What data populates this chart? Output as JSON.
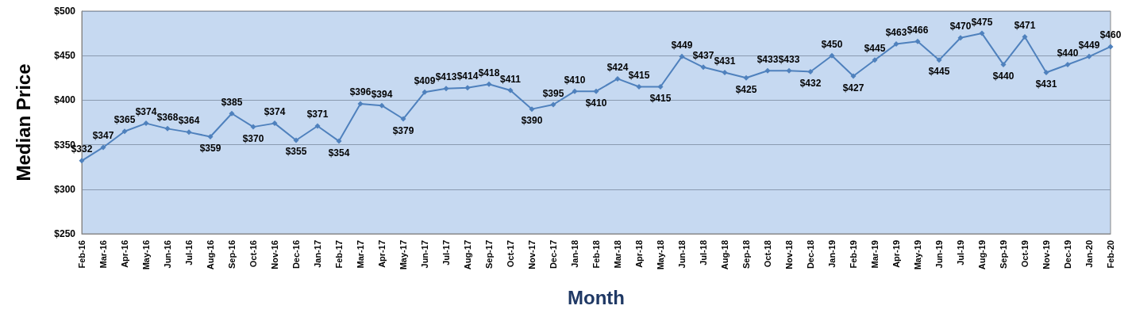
{
  "chart_data": {
    "type": "line",
    "xlabel": "Month",
    "ylabel": "Median Price",
    "categories": [
      "Feb-16",
      "Mar-16",
      "Apr-16",
      "May-16",
      "Jun-16",
      "Jul-16",
      "Aug-16",
      "Sep-16",
      "Oct-16",
      "Nov-16",
      "Dec-16",
      "Jan-17",
      "Feb-17",
      "Mar-17",
      "Apr-17",
      "May-17",
      "Jun-17",
      "Jul-17",
      "Aug-17",
      "Sep-17",
      "Oct-17",
      "Nov-17",
      "Dec-17",
      "Jan-18",
      "Feb-18",
      "Mar-18",
      "Apr-18",
      "May-18",
      "Jun-18",
      "Jul-18",
      "Aug-18",
      "Sep-18",
      "Oct-18",
      "Nov-18",
      "Dec-18",
      "Jan-19",
      "Feb-19",
      "Mar-19",
      "Apr-19",
      "May-19",
      "Jun-19",
      "Jul-19",
      "Aug-19",
      "Sep-19",
      "Oct-19",
      "Nov-19",
      "Dec-19",
      "Jan-20",
      "Feb-20"
    ],
    "series": [
      {
        "color": "#4f81bd",
        "values": [
          332,
          347,
          365,
          374,
          368,
          364,
          359,
          385,
          370,
          374,
          355,
          371,
          354,
          396,
          394,
          379,
          409,
          413,
          414,
          418,
          411,
          390,
          395,
          410,
          410,
          424,
          415,
          415,
          449,
          437,
          431,
          425,
          433,
          433,
          432,
          450,
          427,
          445,
          463,
          466,
          445,
          470,
          475,
          440,
          471,
          431,
          440,
          449,
          460
        ],
        "value_labels": [
          "$332",
          "$347",
          "$365",
          "$374",
          "$368",
          "$364",
          "$359",
          "$385",
          "$370",
          "$374",
          "$355",
          "$371",
          "$354",
          "$396",
          "$394",
          "$379",
          "$409",
          "$413",
          "$414",
          "$418",
          "$411",
          "$390",
          "$395",
          "$410",
          "$410",
          "$424",
          "$415",
          "$415",
          "$449",
          "$437",
          "$431",
          "$425",
          "$433",
          "$433",
          "$432",
          "$450",
          "$427",
          "$445",
          "$463",
          "$466",
          "$445",
          "$470",
          "$475",
          "$440",
          "$471",
          "$431",
          "$440",
          "$449",
          "$460"
        ]
      }
    ],
    "ylim": [
      250,
      500
    ],
    "yticks": [
      {
        "value": 250,
        "label": "$250"
      },
      {
        "value": 300,
        "label": "$300"
      },
      {
        "value": 350,
        "label": "$350"
      },
      {
        "value": 400,
        "label": "$400"
      },
      {
        "value": 450,
        "label": "$450"
      },
      {
        "value": 500,
        "label": "$500"
      }
    ],
    "grid": "y",
    "marker": "diamond",
    "line_style": "solid"
  }
}
